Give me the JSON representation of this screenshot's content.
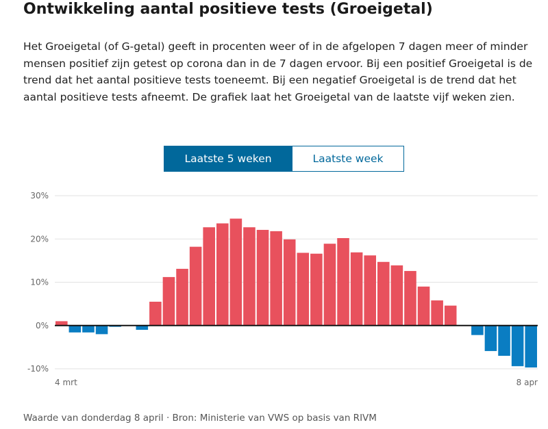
{
  "title": "Ontwikkeling aantal positieve tests (Groeigetal)",
  "intro": "Het Groeigetal (of G-getal) geeft in procenten weer of in de afgelopen 7 dagen meer of minder mensen positief zijn getest op corona dan in de 7 dagen ervoor. Bij een positief Groeigetal is de trend dat het aantal positieve tests toeneemt. Bij een negatief Groeigetal is de trend dat het aantal positieve tests afneemt. De grafiek laat het Groeigetal van de laatste vijf weken zien.",
  "toggle": {
    "active_label": "Laatste 5 weken",
    "inactive_label": "Laatste week"
  },
  "footer": "Waarde van donderdag 8 april · Bron: Ministerie van VWS op basis van RIVM",
  "colors": {
    "positive": "#e8515d",
    "negative": "#0a7dc2",
    "accent": "#01689b"
  },
  "chart_data": {
    "type": "bar",
    "x_start_label": "4 mrt",
    "x_end_label": "8 apr",
    "ylim": [
      -10,
      30
    ],
    "yticks": [
      {
        "value": 30,
        "label": "30%"
      },
      {
        "value": 20,
        "label": "20%"
      },
      {
        "value": 10,
        "label": "10%"
      },
      {
        "value": 0,
        "label": "0%"
      },
      {
        "value": -10,
        "label": "-10%"
      }
    ],
    "values": [
      1.0,
      -1.6,
      -1.6,
      -2.0,
      -0.3,
      0,
      -1.0,
      5.5,
      11.2,
      13.1,
      18.2,
      22.7,
      23.6,
      24.7,
      22.7,
      22.1,
      21.8,
      19.9,
      16.8,
      16.6,
      18.9,
      20.2,
      16.9,
      16.2,
      14.7,
      13.9,
      12.6,
      9.0,
      5.8,
      4.6,
      0,
      -2.2,
      -5.9,
      -7.0,
      -9.4,
      -9.7
    ]
  }
}
